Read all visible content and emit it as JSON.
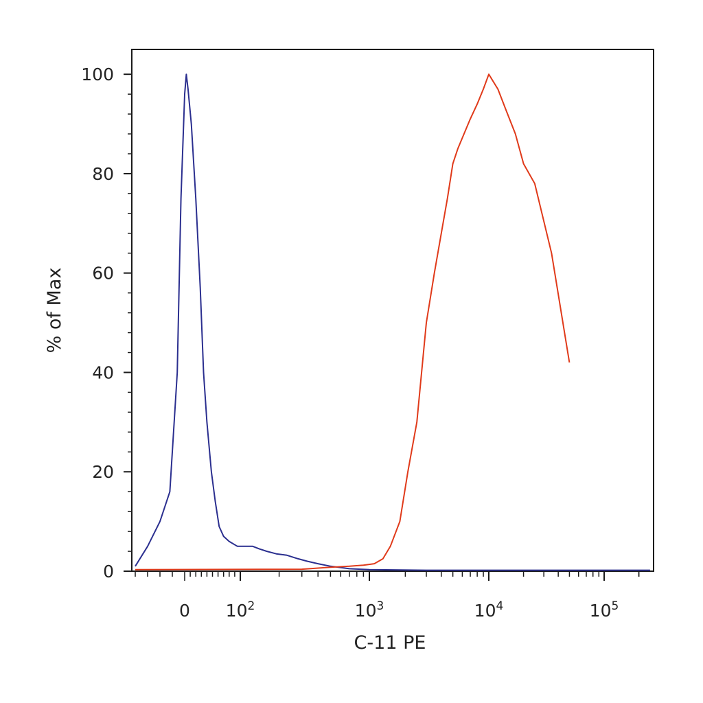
{
  "chart_data": {
    "type": "line",
    "title": "",
    "xlabel": "C-11 PE",
    "ylabel": "% of Max",
    "x_scale": "biexponential",
    "xlim": [
      -40,
      250000
    ],
    "ylim": [
      0,
      105
    ],
    "x_tick_labels": [
      {
        "value": 0,
        "base": "0",
        "exp": ""
      },
      {
        "value": 100,
        "base": "10",
        "exp": "2"
      },
      {
        "value": 1000,
        "base": "10",
        "exp": "3"
      },
      {
        "value": 10000,
        "base": "10",
        "exp": "4"
      },
      {
        "value": 100000,
        "base": "10",
        "exp": "5"
      }
    ],
    "y_ticks": [
      0,
      20,
      40,
      60,
      80,
      100
    ],
    "y_tick_labels": [
      "0",
      "20",
      "40",
      "60",
      "80",
      "100"
    ],
    "grid": false,
    "series": [
      {
        "color": "#2b2f8f",
        "x": [
          -40,
          -30,
          -20,
          -12,
          -6,
          -3,
          0,
          3,
          6,
          12,
          20,
          28,
          34,
          40,
          48,
          55,
          62,
          70,
          80,
          95,
          110,
          125,
          140,
          160,
          190,
          230,
          280,
          330,
          400,
          500,
          700,
          1000,
          3000,
          10000,
          50000,
          250000
        ],
        "y": [
          1,
          5,
          10,
          16,
          40,
          75,
          96,
          100,
          97,
          90,
          75,
          57,
          40,
          30,
          20,
          14,
          9,
          7,
          6,
          5,
          5,
          5,
          4.5,
          4,
          3.5,
          3.2,
          2.5,
          2,
          1.5,
          1,
          0.5,
          0.3,
          0.2,
          0.2,
          0.2,
          0.2
        ]
      },
      {
        "color": "#e03a1a",
        "x": [
          -40,
          300,
          500,
          700,
          900,
          1100,
          1300,
          1500,
          1800,
          2100,
          2500,
          3000,
          3500,
          4000,
          4500,
          5000,
          5500,
          6200,
          7000,
          8000,
          9000,
          10000,
          12000,
          14000,
          17000,
          20000,
          25000,
          35000,
          50000
        ],
        "y": [
          0.3,
          0.4,
          0.8,
          1,
          1.2,
          1.5,
          2.5,
          5,
          10,
          20,
          30,
          50,
          60,
          68,
          75,
          82,
          85,
          88,
          91,
          94,
          97,
          100,
          97,
          93,
          88,
          82,
          78,
          64,
          42
        ]
      }
    ]
  }
}
